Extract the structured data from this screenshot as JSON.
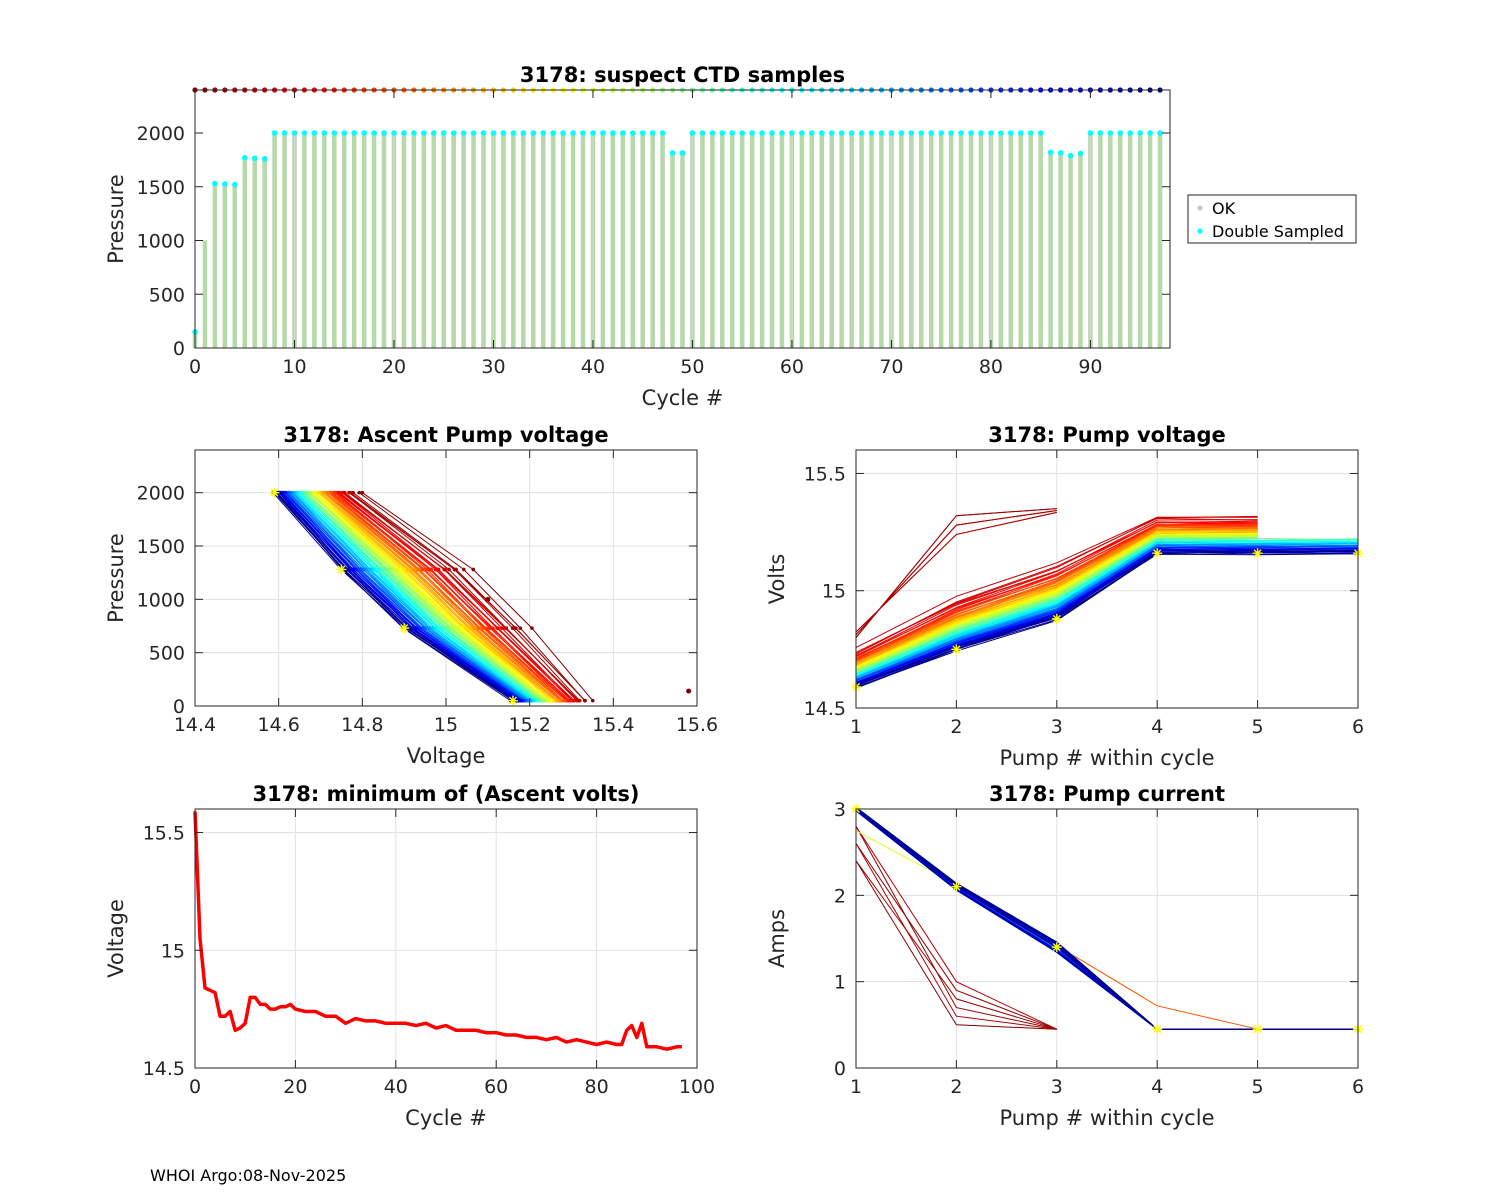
{
  "footer": "WHOI Argo:08-Nov-2025",
  "colors": {
    "ok": "#c8c8c8",
    "double_sampled": "#00ffff",
    "ok_bar": "#b5d9a8",
    "min_line": "#ff0000",
    "axis": "#262626",
    "grid": "#e1e1e1",
    "marker": "#ffff00"
  },
  "chart_data": [
    {
      "type": "bar",
      "title": "3178: suspect CTD samples",
      "xlabel": "Cycle #",
      "ylabel": "Pressure",
      "xlim": [
        0,
        98
      ],
      "ylim": [
        2400,
        0
      ],
      "y_reversed": true,
      "xticks": [
        "0",
        "10",
        "20",
        "30",
        "40",
        "50",
        "60",
        "70",
        "80",
        "90"
      ],
      "yticks": [
        "0",
        "500",
        "1000",
        "1500",
        "2000"
      ],
      "legend": [
        "OK",
        "Double Sampled"
      ],
      "legend_position": "outside-right",
      "cycles_first": 0,
      "cycles_last": 97,
      "max_pressure": [
        150,
        1000,
        1530,
        1525,
        1520,
        1770,
        1765,
        1760,
        2000,
        2000,
        2000,
        2000,
        2000,
        2000,
        2000,
        2000,
        2000,
        2000,
        2000,
        2000,
        2000,
        2000,
        2000,
        2000,
        2000,
        2000,
        2000,
        2000,
        2000,
        2000,
        2000,
        2000,
        2000,
        2000,
        2000,
        2000,
        2000,
        2000,
        2000,
        2000,
        2000,
        2000,
        2000,
        2000,
        2000,
        2000,
        2000,
        2000,
        1815,
        1815,
        2000,
        2000,
        2000,
        2000,
        2000,
        2000,
        2000,
        2000,
        2000,
        2000,
        2000,
        2000,
        2000,
        2000,
        2000,
        2000,
        2000,
        2000,
        2000,
        2000,
        2000,
        2000,
        2000,
        2000,
        2000,
        2000,
        2000,
        2000,
        2000,
        2000,
        2000,
        2000,
        2000,
        2000,
        2000,
        2000,
        1820,
        1815,
        1790,
        1810,
        2000,
        2000,
        2000,
        2000,
        2000,
        2000,
        2000,
        2000
      ],
      "double_sampled_cycles": [
        0,
        2,
        3,
        4,
        5,
        6,
        7,
        8,
        9,
        10,
        11,
        12,
        13,
        14,
        15,
        16,
        17,
        18,
        19,
        20,
        21,
        22,
        23,
        24,
        25,
        26,
        27,
        28,
        29,
        30,
        31,
        32,
        33,
        34,
        35,
        36,
        37,
        38,
        39,
        40,
        41,
        42,
        43,
        44,
        45,
        46,
        47,
        48,
        49,
        50,
        51,
        52,
        53,
        54,
        55,
        56,
        57,
        58,
        59,
        60,
        61,
        62,
        63,
        64,
        65,
        66,
        67,
        68,
        69,
        70,
        71,
        72,
        73,
        74,
        75,
        76,
        77,
        78,
        79,
        80,
        81,
        82,
        83,
        84,
        85,
        86,
        87,
        88,
        89,
        90,
        91,
        92,
        93,
        94,
        95,
        96,
        97
      ],
      "cycle_marker_pressure": 2400
    },
    {
      "type": "line",
      "title": "3178: Ascent Pump voltage",
      "xlabel": "Voltage",
      "ylabel": "Pressure",
      "xlim": [
        14.4,
        15.6
      ],
      "ylim": [
        2400,
        0
      ],
      "y_reversed": true,
      "xticks": [
        "14.4",
        "14.6",
        "14.8",
        "15",
        "15.2",
        "15.4",
        "15.6"
      ],
      "yticks": [
        "0",
        "500",
        "1000",
        "1500",
        "2000"
      ],
      "series_summary": {
        "cycles": 98,
        "pressure_levels": [
          2000,
          1280,
          730,
          50
        ],
        "first_cycle_voltage": [
          14.8,
          15.06,
          15.2,
          15.35
        ],
        "last_cycle_voltage": [
          14.59,
          14.75,
          14.9,
          15.16
        ]
      },
      "outliers": [
        {
          "x": 15.58,
          "y": 140
        },
        {
          "x": 15.1,
          "y": 1000
        }
      ]
    },
    {
      "type": "line",
      "title": "3178: Pump voltage",
      "xlabel": "Pump # within cycle",
      "ylabel": "Volts",
      "xlim": [
        1,
        6
      ],
      "ylim": [
        14.5,
        15.6
      ],
      "xticks": [
        "1",
        "2",
        "3",
        "4",
        "5",
        "6"
      ],
      "yticks": [
        "14.5",
        "15",
        "15.5"
      ],
      "series_summary": {
        "pumps": [
          1,
          2,
          3,
          4,
          5,
          6
        ],
        "first_cycles_red": [
          14.8,
          15.32,
          15.35
        ],
        "early_cycle": [
          14.75,
          14.97,
          15.12,
          15.32,
          15.32
        ],
        "last_cycle": [
          14.59,
          14.75,
          14.88,
          15.16,
          15.16,
          15.16
        ]
      }
    },
    {
      "type": "line",
      "title": "3178: minimum of (Ascent volts)",
      "xlabel": "Cycle #",
      "ylabel": "Voltage",
      "xlim": [
        0,
        100
      ],
      "ylim": [
        14.5,
        15.6
      ],
      "xticks": [
        "0",
        "20",
        "40",
        "60",
        "80",
        "100"
      ],
      "yticks": [
        "14.5",
        "15",
        "15.5"
      ],
      "x": [
        0,
        1,
        2,
        3,
        4,
        5,
        6,
        7,
        8,
        9,
        10,
        11,
        12,
        13,
        14,
        15,
        16,
        17,
        18,
        19,
        20,
        22,
        24,
        26,
        28,
        30,
        32,
        34,
        36,
        38,
        40,
        42,
        44,
        46,
        48,
        50,
        52,
        54,
        56,
        58,
        60,
        62,
        64,
        66,
        68,
        70,
        72,
        74,
        76,
        78,
        80,
        82,
        84,
        85,
        86,
        87,
        88,
        89,
        90,
        92,
        94,
        96,
        97
      ],
      "y": [
        15.59,
        15.05,
        14.84,
        14.83,
        14.82,
        14.72,
        14.72,
        14.74,
        14.66,
        14.67,
        14.69,
        14.8,
        14.8,
        14.77,
        14.77,
        14.75,
        14.75,
        14.76,
        14.76,
        14.77,
        14.75,
        14.74,
        14.74,
        14.72,
        14.72,
        14.69,
        14.71,
        14.7,
        14.7,
        14.69,
        14.69,
        14.69,
        14.68,
        14.69,
        14.67,
        14.68,
        14.66,
        14.66,
        14.66,
        14.65,
        14.65,
        14.64,
        14.64,
        14.63,
        14.63,
        14.62,
        14.63,
        14.61,
        14.62,
        14.61,
        14.6,
        14.61,
        14.6,
        14.6,
        14.66,
        14.68,
        14.63,
        14.69,
        14.59,
        14.59,
        14.58,
        14.59,
        14.59
      ]
    },
    {
      "type": "line",
      "title": "3178: Pump current",
      "xlabel": "Pump # within cycle",
      "ylabel": "Amps",
      "xlim": [
        1,
        6
      ],
      "ylim": [
        0,
        3
      ],
      "xticks": [
        "1",
        "2",
        "3",
        "4",
        "5",
        "6"
      ],
      "yticks": [
        "0",
        "1",
        "2",
        "3"
      ],
      "series_summary": {
        "pumps": [
          1,
          2,
          3,
          4,
          5,
          6
        ],
        "first_cycles_red": [
          2.4,
          0.5,
          0.45
        ],
        "typical_cycle": [
          3.0,
          2.1,
          1.4,
          0.45,
          0.45,
          0.45
        ]
      }
    }
  ]
}
